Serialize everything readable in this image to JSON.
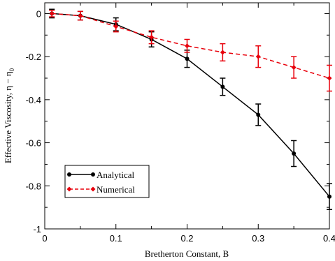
{
  "chart_data": {
    "type": "line",
    "xlabel": "Bretherton Constant, B",
    "ylabel": "Effective Viscosity, η − η",
    "ylabel_subscript": "0",
    "xlim": [
      0,
      0.4
    ],
    "ylim": [
      -1,
      0.05
    ],
    "x_ticks": [
      0,
      0.1,
      0.2,
      0.3,
      0.4
    ],
    "x_tick_labels": [
      "0",
      "0.1",
      "0.2",
      "0.3",
      "0.4"
    ],
    "y_ticks": [
      0,
      -0.2,
      -0.4,
      -0.6,
      -0.8,
      -1
    ],
    "y_tick_labels": [
      "0",
      "-0.2",
      "-0.4",
      "-0.6",
      "-0.8",
      "-1"
    ],
    "grid": false,
    "legend_placement": "bottom-left",
    "x": [
      0.01,
      0.05,
      0.1,
      0.15,
      0.2,
      0.25,
      0.3,
      0.35,
      0.4
    ],
    "series": [
      {
        "name": "Analytical",
        "color": "#000000",
        "line_style": "solid",
        "marker": "circle",
        "values": [
          0.0,
          -0.01,
          -0.05,
          -0.12,
          -0.21,
          -0.34,
          -0.47,
          -0.65,
          -0.85
        ],
        "error": [
          0.02,
          0.02,
          0.03,
          0.035,
          0.04,
          0.04,
          0.05,
          0.06,
          0.06
        ]
      },
      {
        "name": "Numerical",
        "color": "#e8000b",
        "line_style": "dashed",
        "marker": "diamond",
        "values": [
          0.0,
          -0.01,
          -0.06,
          -0.11,
          -0.15,
          -0.18,
          -0.2,
          -0.25,
          -0.3
        ],
        "error": [
          0.015,
          0.02,
          0.025,
          0.03,
          0.03,
          0.04,
          0.05,
          0.05,
          0.06
        ]
      }
    ]
  }
}
